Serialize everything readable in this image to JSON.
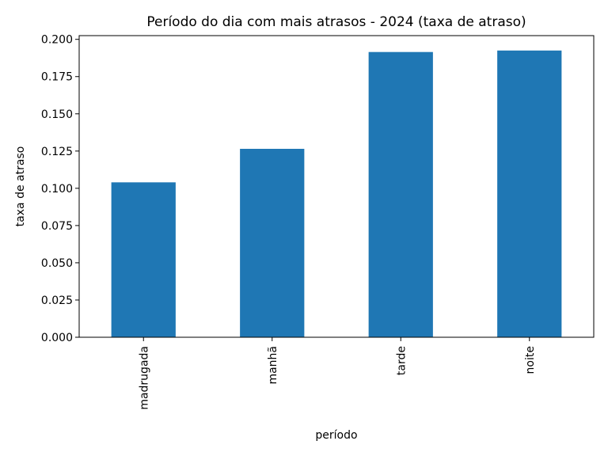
{
  "chart_data": {
    "type": "bar",
    "title": "Período do dia com mais atrasos - 2024 (taxa de atraso)",
    "xlabel": "período",
    "ylabel": "taxa de atraso",
    "categories": [
      "madrugada",
      "manhã",
      "tarde",
      "noite"
    ],
    "values": [
      0.104,
      0.1265,
      0.1915,
      0.1925
    ],
    "ylim": [
      0,
      0.2025
    ],
    "yticks": [
      "0.000",
      "0.025",
      "0.050",
      "0.075",
      "0.100",
      "0.125",
      "0.150",
      "0.175",
      "0.200"
    ],
    "grid": false,
    "legend": "none",
    "bar_color": "#1f77b4"
  }
}
